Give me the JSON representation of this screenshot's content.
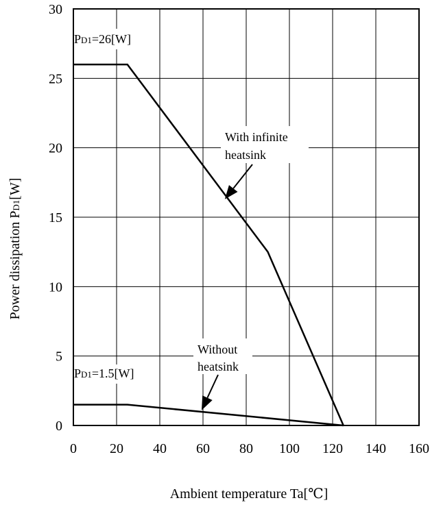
{
  "chart_data": {
    "type": "line",
    "title": "",
    "xlabel": "Ambient temperature Ta[℃]",
    "ylabel": {
      "prefix": "Power dissipation P",
      "sub": "D1",
      "suffix": "[W]"
    },
    "xlim": [
      0,
      160
    ],
    "ylim": [
      0,
      30
    ],
    "xticks": [
      0,
      20,
      40,
      60,
      80,
      100,
      120,
      140,
      160
    ],
    "yticks": [
      0,
      5,
      10,
      15,
      20,
      25,
      30
    ],
    "grid": true,
    "series": [
      {
        "x": [
          0,
          25,
          90,
          125
        ],
        "y": [
          26,
          26,
          12.5,
          0
        ]
      },
      {
        "x": [
          0,
          25,
          125
        ],
        "y": [
          1.5,
          1.5,
          0
        ]
      }
    ],
    "annotations": {
      "pd_high": {
        "prefix": "P",
        "sub": "D1",
        "suffix": "=26[W]"
      },
      "pd_low": {
        "prefix": "P",
        "sub": "D1",
        "suffix": "=1.5[W]"
      },
      "with_heatsink": {
        "line1": "With infinite",
        "line2": "heatsink",
        "arrow_to": [
          72,
          16
        ]
      },
      "without_heatsink": {
        "line1": "Without",
        "line2": "heatsink",
        "arrow_to": [
          60,
          1.0
        ]
      }
    },
    "colors": {
      "line": "#000000",
      "grid": "#000000",
      "background": "#ffffff"
    }
  }
}
